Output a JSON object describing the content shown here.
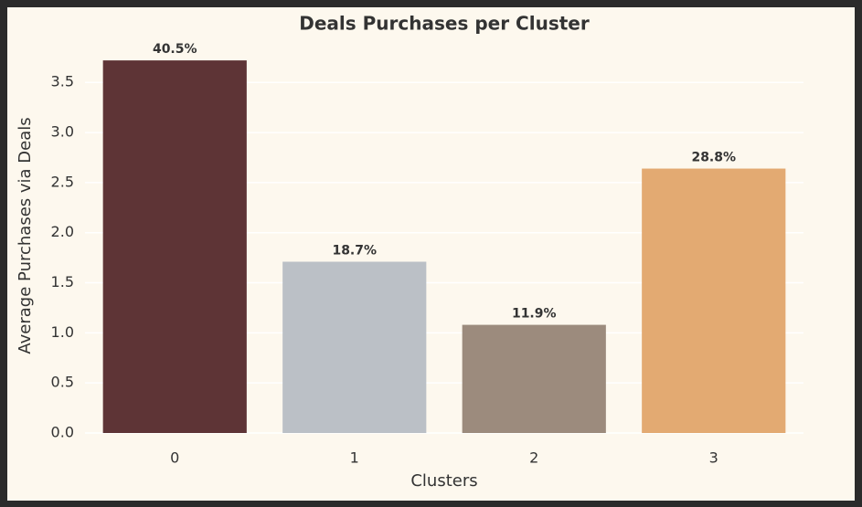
{
  "chart_data": {
    "type": "bar",
    "title": "Deals Purchases per Cluster",
    "xlabel": "Clusters",
    "ylabel": "Average Purchases via Deals",
    "categories": [
      "0",
      "1",
      "2",
      "3"
    ],
    "values": [
      3.72,
      1.71,
      1.08,
      2.64
    ],
    "annotations": [
      "40.5%",
      "18.7%",
      "11.9%",
      "28.8%"
    ],
    "colors": [
      "#5e3436",
      "#bbc0c6",
      "#9c8b7d",
      "#e3aa72"
    ],
    "ylim": [
      0,
      3.94
    ],
    "yticks": [
      {
        "value": 0,
        "label": "0.0"
      },
      0.5,
      {
        "value": 1,
        "label": "1.0"
      },
      1.5,
      {
        "value": 2,
        "label": "2.0"
      },
      2.5,
      {
        "value": 3,
        "label": "3.0"
      },
      3.5
    ],
    "grid": true
  }
}
